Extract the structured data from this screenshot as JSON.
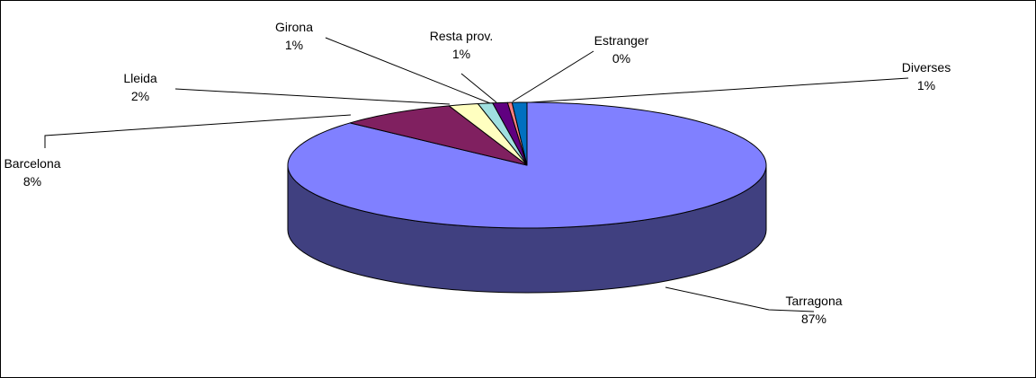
{
  "chart_data": {
    "type": "pie",
    "style": "3d",
    "title": "",
    "slices": [
      {
        "label": "Tarragona",
        "value": 87,
        "display": "87%",
        "color": "#8080ff",
        "side_color": "#404080"
      },
      {
        "label": "Barcelona",
        "value": 8,
        "display": "8%",
        "color": "#802060",
        "side_color": "#401030"
      },
      {
        "label": "Lleida",
        "value": 2,
        "display": "2%",
        "color": "#ffffc0",
        "side_color": "#808060"
      },
      {
        "label": "Girona",
        "value": 1,
        "display": "1%",
        "color": "#a0e0e0",
        "side_color": "#507070"
      },
      {
        "label": "Resta prov.",
        "value": 1,
        "display": "1%",
        "color": "#600080",
        "side_color": "#300040"
      },
      {
        "label": "Estranger",
        "value": 0.3,
        "display": "0%",
        "color": "#ff8080",
        "side_color": "#804040"
      },
      {
        "label": "Diverses",
        "value": 1,
        "display": "1%",
        "color": "#0070c0",
        "side_color": "#003860"
      }
    ],
    "legend": "none",
    "labels_with_leader_lines": true
  }
}
